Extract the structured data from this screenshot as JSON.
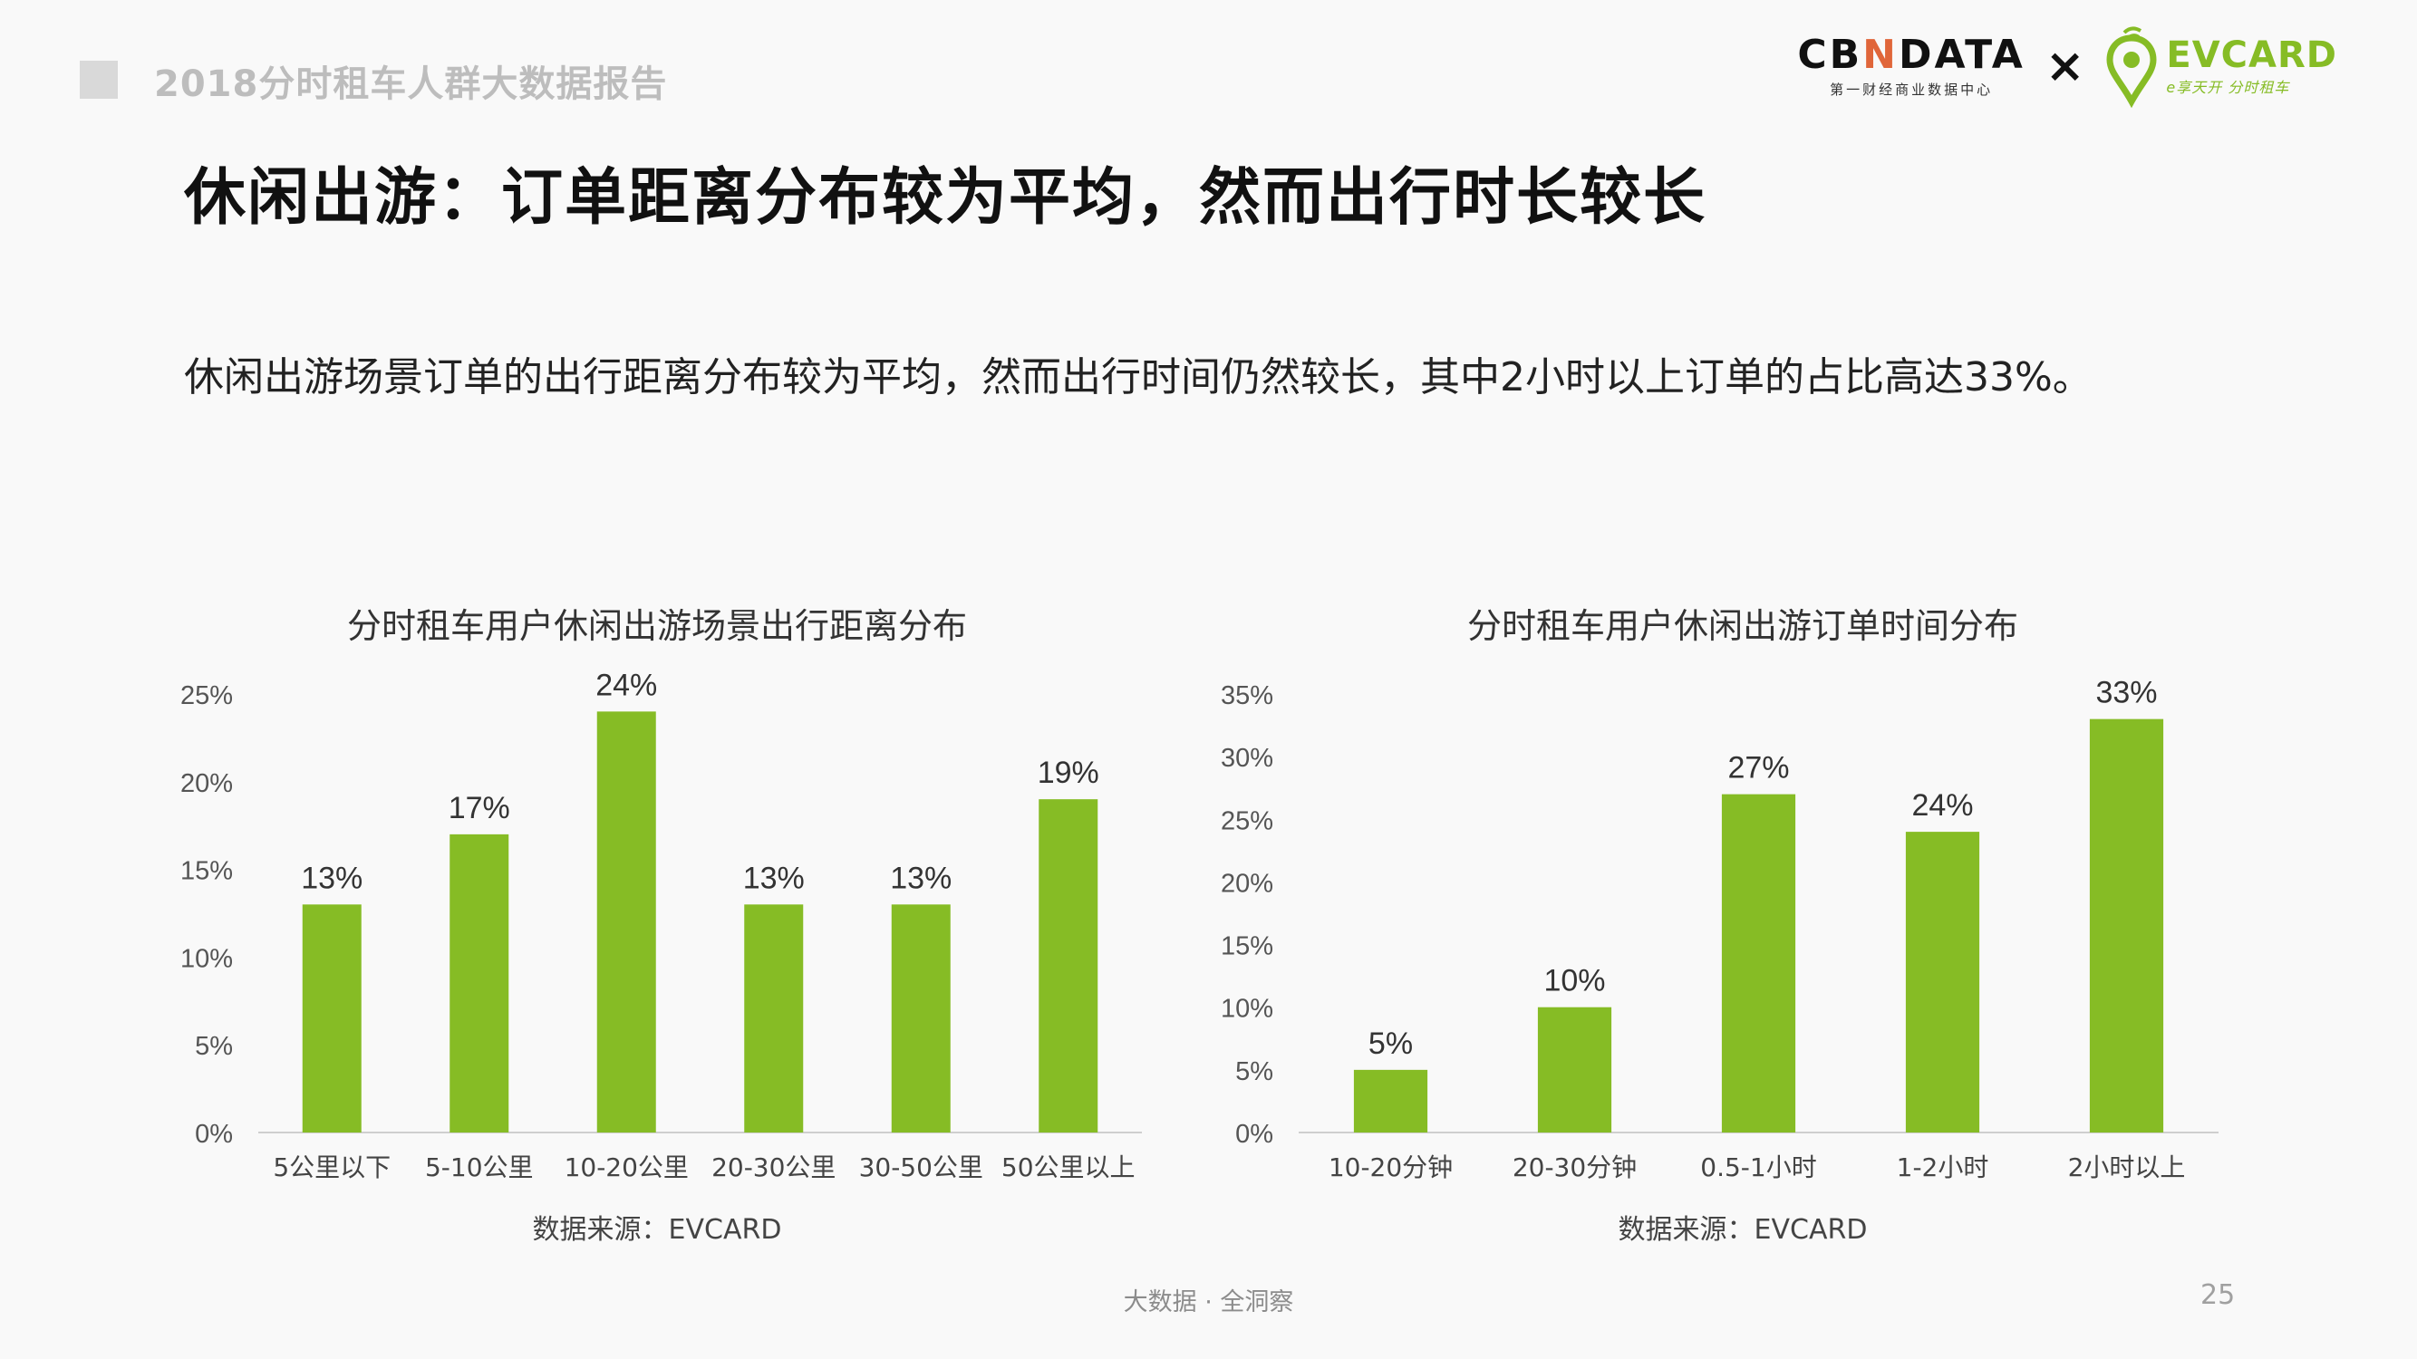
{
  "header": {
    "report_title": "2018分时租车人群大数据报告",
    "logo_cbn_word_a": "CB",
    "logo_cbn_word_n": "N",
    "logo_cbn_word_b": "DATA",
    "logo_cbn_sub": "第一财经商业数据中心",
    "logo_times": "×",
    "logo_ev_word": "EVCARD",
    "logo_ev_sub": "e享天开 分时租车"
  },
  "main_title": "休闲出游：订单距离分布较为平均，然而出行时长较长",
  "subtitle": "休闲出游场景订单的出行距离分布较为平均，然而出行时间仍然较长，其中2小时以上订单的占比高达33%。",
  "chart_data": [
    {
      "type": "bar",
      "title": "分时租车用户休闲出游场景出行距离分布",
      "categories": [
        "5公里以下",
        "5-10公里",
        "10-20公里",
        "20-30公里",
        "30-50公里",
        "50公里以上"
      ],
      "values": [
        13,
        17,
        24,
        13,
        13,
        19
      ],
      "value_labels": [
        "13%",
        "17%",
        "24%",
        "13%",
        "13%",
        "19%"
      ],
      "ylim": [
        0,
        25
      ],
      "yticks": [
        0,
        5,
        10,
        15,
        20,
        25
      ],
      "ytick_labels": [
        "0%",
        "5%",
        "10%",
        "15%",
        "20%",
        "25%"
      ],
      "bar_color": "#86bc25",
      "grid": false,
      "source": "数据来源：EVCARD"
    },
    {
      "type": "bar",
      "title": "分时租车用户休闲出游订单时间分布",
      "categories": [
        "10-20分钟",
        "20-30分钟",
        "0.5-1小时",
        "1-2小时",
        "2小时以上"
      ],
      "values": [
        5,
        10,
        27,
        24,
        33
      ],
      "value_labels": [
        "5%",
        "10%",
        "27%",
        "24%",
        "33%"
      ],
      "ylim": [
        0,
        35
      ],
      "yticks": [
        0,
        5,
        10,
        15,
        20,
        25,
        30,
        35
      ],
      "ytick_labels": [
        "0%",
        "5%",
        "10%",
        "15%",
        "20%",
        "25%",
        "30%",
        "35%"
      ],
      "bar_color": "#86bc25",
      "grid": false,
      "source": "数据来源：EVCARD"
    }
  ],
  "footer": {
    "tagline": "大数据 · 全洞察",
    "page_number": "25"
  }
}
